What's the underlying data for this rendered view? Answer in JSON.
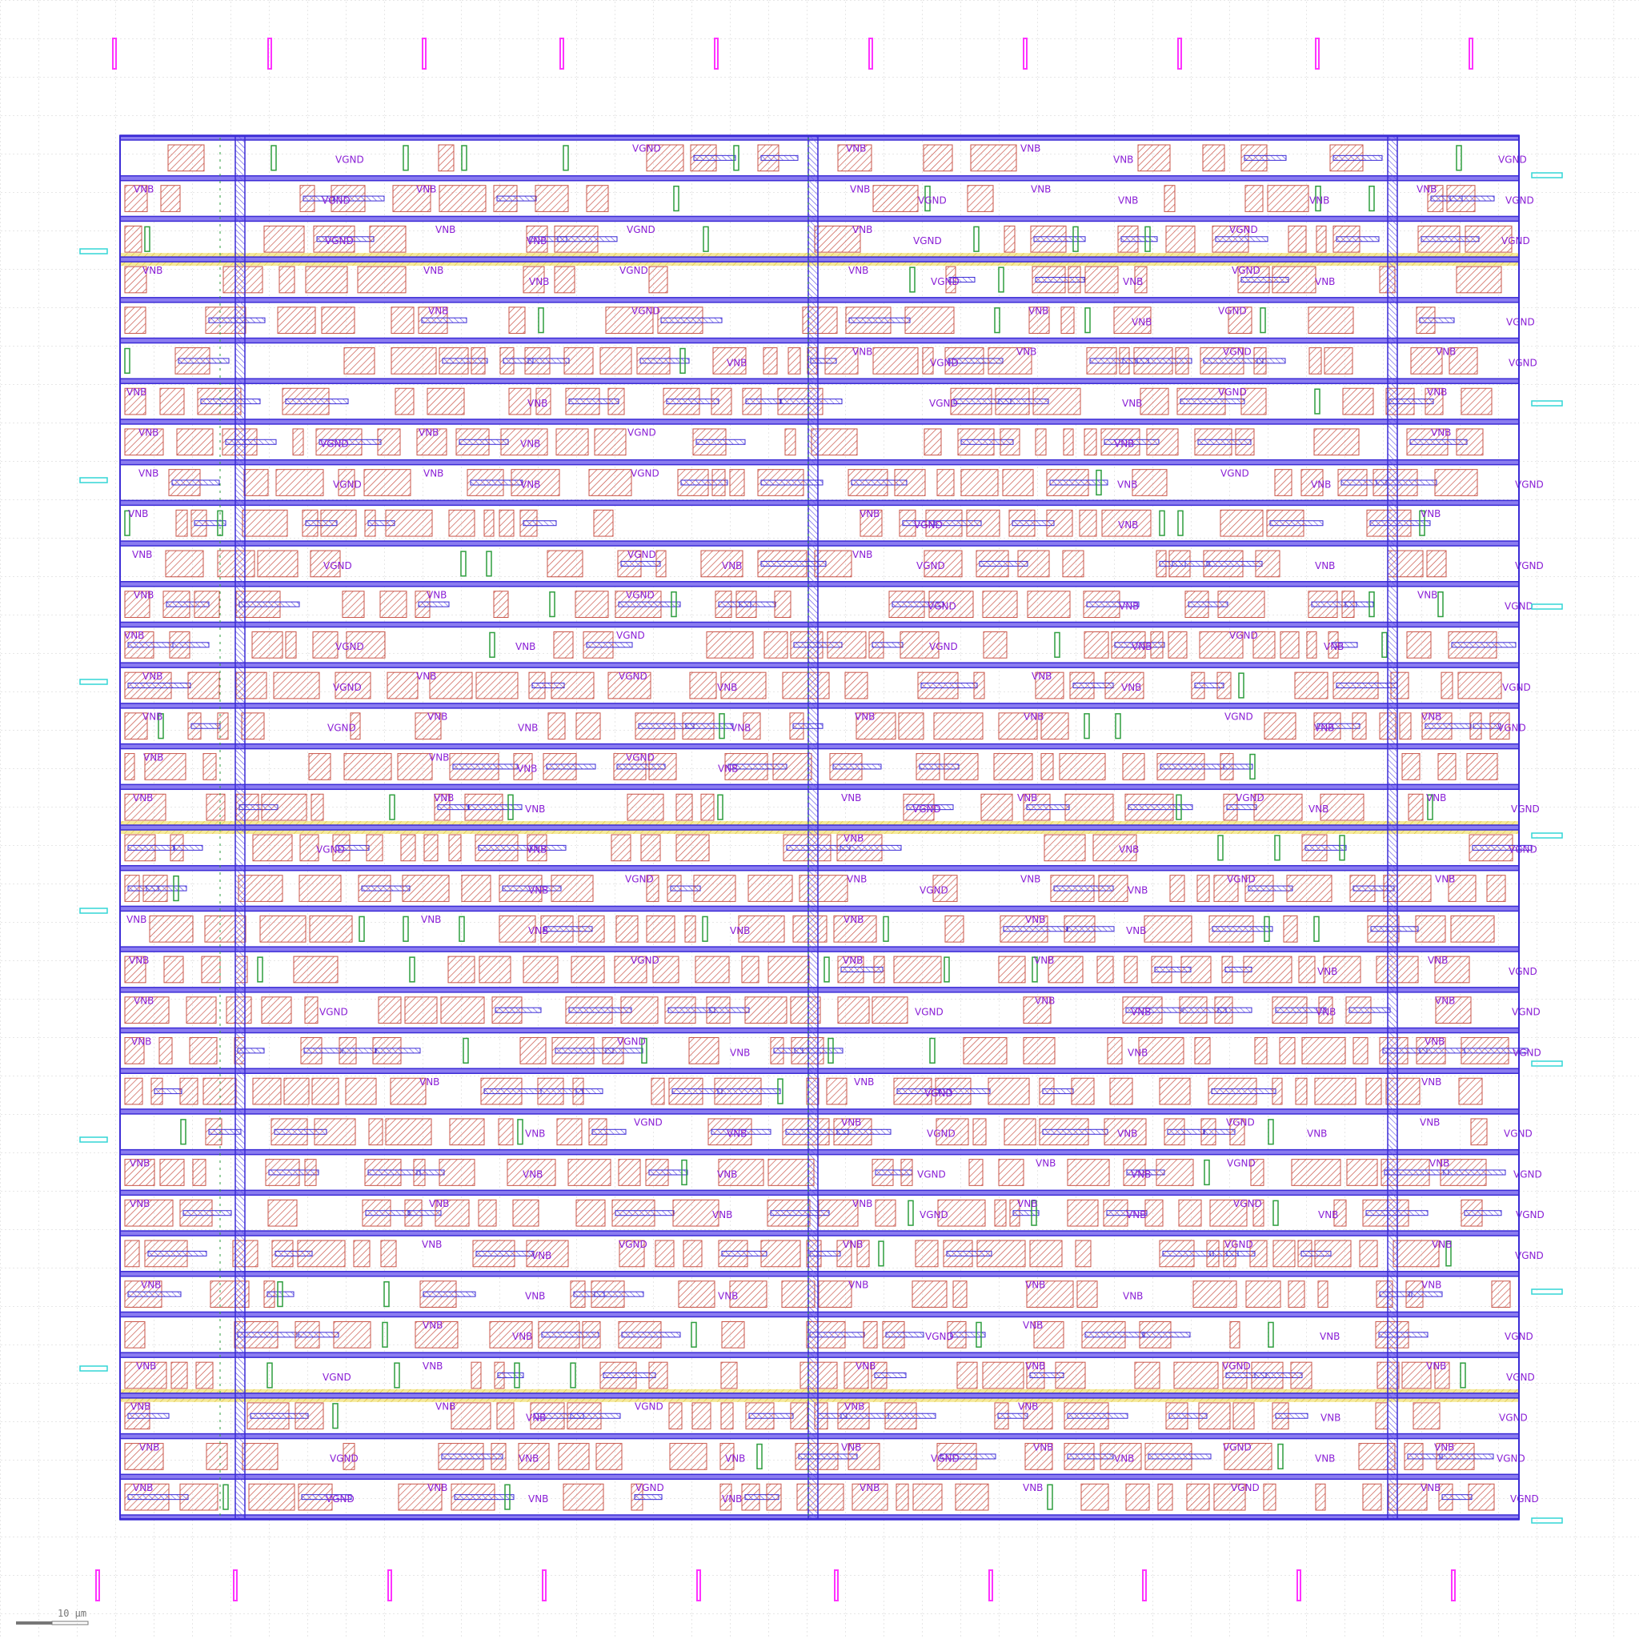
{
  "view": {
    "type": "ic-layout-viewer",
    "background": "#ffffff",
    "grid": {
      "visible": true,
      "style": "dotted",
      "color": "#c8c8c8"
    }
  },
  "layout": {
    "rows": 34,
    "row_labels": {
      "ground": "VGND",
      "body": "VNB"
    },
    "colors": {
      "metal_rail": "#3b2bd6",
      "metal_rail_fill": "#8a7cf0",
      "poly": "#c0392b",
      "diffusion": "#d4a017",
      "label": "#8a1fd6",
      "pin_top_bottom": "#ff33ff",
      "pin_side": "#33d6d6",
      "well_tap": "#2e9e3e",
      "power_strap_highlight": "#f2e27a"
    },
    "highlighted_rows": [
      3,
      17,
      31
    ]
  },
  "scale_bar": {
    "label": "10 µm"
  }
}
